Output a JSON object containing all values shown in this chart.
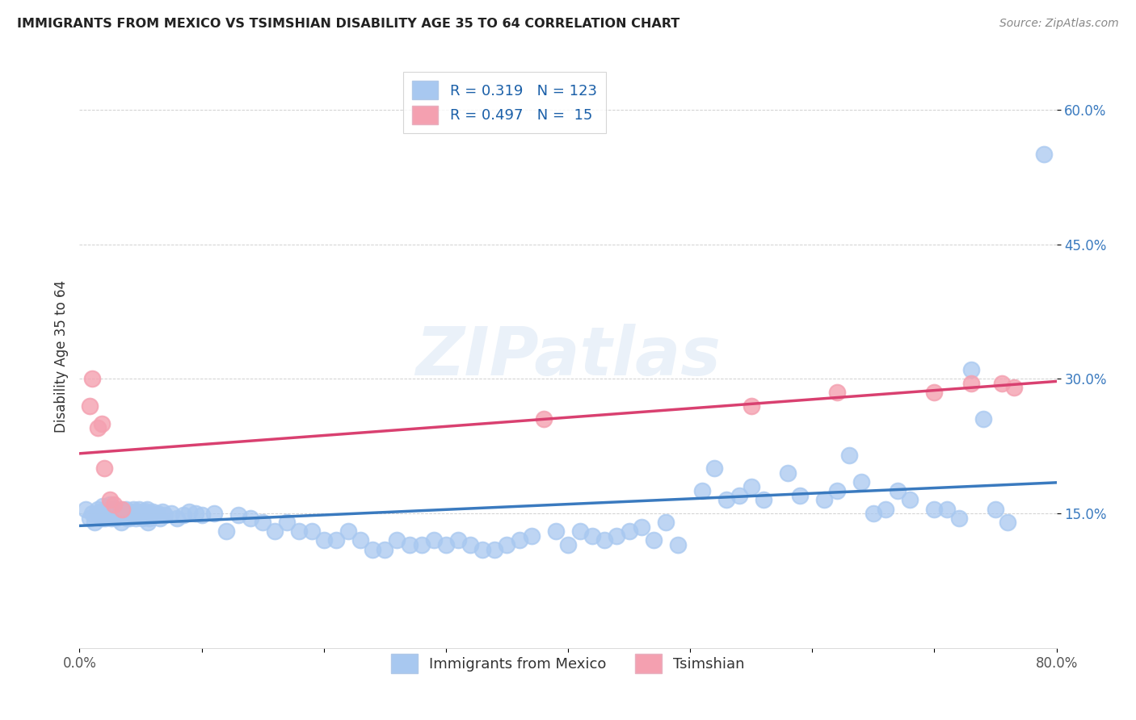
{
  "title": "IMMIGRANTS FROM MEXICO VS TSIMSHIAN DISABILITY AGE 35 TO 64 CORRELATION CHART",
  "source": "Source: ZipAtlas.com",
  "ylabel": "Disability Age 35 to 64",
  "xlim": [
    0.0,
    0.8
  ],
  "ylim": [
    0.0,
    0.65
  ],
  "xtick_positions": [
    0.0,
    0.1,
    0.2,
    0.3,
    0.4,
    0.5,
    0.6,
    0.7,
    0.8
  ],
  "xticklabels": [
    "0.0%",
    "",
    "",
    "",
    "",
    "",
    "",
    "",
    "80.0%"
  ],
  "ytick_positions": [
    0.15,
    0.3,
    0.45,
    0.6
  ],
  "ytick_labels": [
    "15.0%",
    "30.0%",
    "45.0%",
    "60.0%"
  ],
  "blue_color": "#a8c8f0",
  "pink_color": "#f4a0b0",
  "blue_line_color": "#3a7abf",
  "pink_line_color": "#d94070",
  "r_blue": 0.319,
  "n_blue": 123,
  "r_pink": 0.497,
  "n_pink": 15,
  "legend_label_blue": "Immigrants from Mexico",
  "legend_label_pink": "Tsimshian",
  "watermark": "ZIPatlas",
  "blue_x": [
    0.005,
    0.008,
    0.01,
    0.012,
    0.015,
    0.016,
    0.017,
    0.018,
    0.019,
    0.02,
    0.021,
    0.022,
    0.023,
    0.024,
    0.025,
    0.026,
    0.027,
    0.028,
    0.029,
    0.03,
    0.031,
    0.032,
    0.033,
    0.034,
    0.035,
    0.036,
    0.037,
    0.038,
    0.039,
    0.04,
    0.041,
    0.042,
    0.043,
    0.044,
    0.045,
    0.046,
    0.047,
    0.048,
    0.049,
    0.05,
    0.051,
    0.052,
    0.053,
    0.054,
    0.055,
    0.056,
    0.057,
    0.058,
    0.059,
    0.06,
    0.062,
    0.064,
    0.066,
    0.068,
    0.07,
    0.075,
    0.08,
    0.085,
    0.09,
    0.095,
    0.1,
    0.11,
    0.12,
    0.13,
    0.14,
    0.15,
    0.16,
    0.17,
    0.18,
    0.19,
    0.2,
    0.21,
    0.22,
    0.23,
    0.24,
    0.25,
    0.26,
    0.27,
    0.28,
    0.29,
    0.3,
    0.31,
    0.32,
    0.33,
    0.34,
    0.35,
    0.36,
    0.37,
    0.39,
    0.4,
    0.41,
    0.42,
    0.43,
    0.44,
    0.45,
    0.46,
    0.47,
    0.48,
    0.49,
    0.51,
    0.52,
    0.53,
    0.54,
    0.55,
    0.56,
    0.58,
    0.59,
    0.61,
    0.62,
    0.63,
    0.64,
    0.65,
    0.66,
    0.67,
    0.68,
    0.7,
    0.71,
    0.72,
    0.73,
    0.74,
    0.75,
    0.76,
    0.79
  ],
  "blue_y": [
    0.155,
    0.145,
    0.15,
    0.14,
    0.155,
    0.148,
    0.152,
    0.145,
    0.158,
    0.15,
    0.145,
    0.153,
    0.148,
    0.155,
    0.16,
    0.145,
    0.15,
    0.148,
    0.155,
    0.145,
    0.152,
    0.148,
    0.155,
    0.14,
    0.15,
    0.153,
    0.148,
    0.155,
    0.145,
    0.15,
    0.145,
    0.152,
    0.148,
    0.155,
    0.15,
    0.145,
    0.148,
    0.152,
    0.155,
    0.148,
    0.145,
    0.15,
    0.153,
    0.148,
    0.155,
    0.14,
    0.145,
    0.15,
    0.148,
    0.152,
    0.148,
    0.15,
    0.145,
    0.152,
    0.148,
    0.15,
    0.145,
    0.148,
    0.152,
    0.15,
    0.148,
    0.15,
    0.13,
    0.148,
    0.145,
    0.14,
    0.13,
    0.14,
    0.13,
    0.13,
    0.12,
    0.12,
    0.13,
    0.12,
    0.11,
    0.11,
    0.12,
    0.115,
    0.115,
    0.12,
    0.115,
    0.12,
    0.115,
    0.11,
    0.11,
    0.115,
    0.12,
    0.125,
    0.13,
    0.115,
    0.13,
    0.125,
    0.12,
    0.125,
    0.13,
    0.135,
    0.12,
    0.14,
    0.115,
    0.175,
    0.2,
    0.165,
    0.17,
    0.18,
    0.165,
    0.195,
    0.17,
    0.165,
    0.175,
    0.215,
    0.185,
    0.15,
    0.155,
    0.175,
    0.165,
    0.155,
    0.155,
    0.145,
    0.31,
    0.255,
    0.155,
    0.14,
    0.55
  ],
  "pink_x": [
    0.008,
    0.01,
    0.015,
    0.018,
    0.02,
    0.025,
    0.028,
    0.035,
    0.38,
    0.55,
    0.62,
    0.7,
    0.73,
    0.755,
    0.765
  ],
  "pink_y": [
    0.27,
    0.3,
    0.245,
    0.25,
    0.2,
    0.165,
    0.16,
    0.155,
    0.255,
    0.27,
    0.285,
    0.285,
    0.295,
    0.295,
    0.29
  ]
}
